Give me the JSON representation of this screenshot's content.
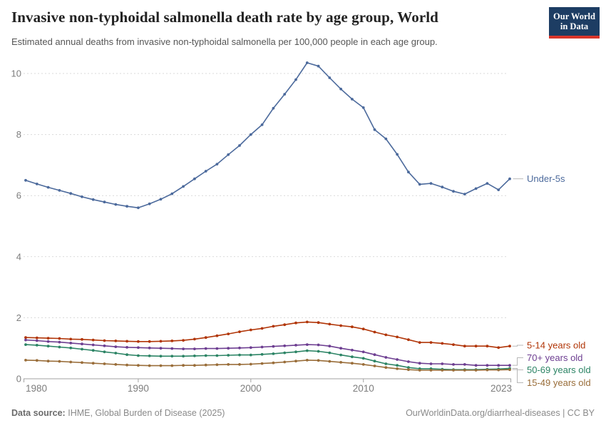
{
  "header": {
    "title": "Invasive non-typhoidal salmonella death rate by age group, World",
    "subtitle": "Estimated annual deaths from invasive non-typhoidal salmonella per 100,000 people in each age group."
  },
  "logo": {
    "line1": "Our World",
    "line2": "in Data",
    "bg_color": "#1D3D63",
    "accent_color": "#D8352A"
  },
  "chart_data": {
    "type": "line",
    "title": "Invasive non-typhoidal salmonella death rate by age group, World",
    "xlabel": "",
    "ylabel": "",
    "ylim": [
      0,
      10.4
    ],
    "yticks": [
      0,
      2,
      4,
      6,
      8,
      10
    ],
    "xticks": [
      1980,
      1990,
      2000,
      2010,
      2023
    ],
    "grid": "horizontal-dashed",
    "legend_position": "end-labels-right",
    "axis_color": "#a3a3a3",
    "grid_color": "#d9d9d9",
    "tick_label_color": "#7d7d7d",
    "connector_color": "#b8b8b8",
    "x": [
      1980,
      1981,
      1982,
      1983,
      1984,
      1985,
      1986,
      1987,
      1988,
      1989,
      1990,
      1991,
      1992,
      1993,
      1994,
      1995,
      1996,
      1997,
      1998,
      1999,
      2000,
      2001,
      2002,
      2003,
      2004,
      2005,
      2006,
      2007,
      2008,
      2009,
      2010,
      2011,
      2012,
      2013,
      2014,
      2015,
      2016,
      2017,
      2018,
      2019,
      2020,
      2021,
      2022,
      2023
    ],
    "series": [
      {
        "name": "Under-5s",
        "color": "#4C6A9C",
        "values": [
          6.5,
          6.38,
          6.27,
          6.17,
          6.07,
          5.96,
          5.87,
          5.79,
          5.71,
          5.65,
          5.6,
          5.73,
          5.88,
          6.06,
          6.3,
          6.55,
          6.8,
          7.03,
          7.34,
          7.64,
          8.0,
          8.32,
          8.86,
          9.32,
          9.8,
          10.35,
          10.24,
          9.86,
          9.49,
          9.16,
          8.88,
          8.16,
          7.86,
          7.35,
          6.77,
          6.37,
          6.4,
          6.28,
          6.14,
          6.05,
          6.23,
          6.4,
          6.19,
          6.55
        ]
      },
      {
        "name": "5-14 years old",
        "color": "#B13507",
        "values": [
          1.35,
          1.34,
          1.33,
          1.32,
          1.3,
          1.29,
          1.27,
          1.25,
          1.24,
          1.23,
          1.22,
          1.22,
          1.23,
          1.24,
          1.26,
          1.3,
          1.35,
          1.41,
          1.47,
          1.54,
          1.6,
          1.65,
          1.72,
          1.77,
          1.83,
          1.86,
          1.84,
          1.79,
          1.74,
          1.7,
          1.63,
          1.53,
          1.44,
          1.37,
          1.28,
          1.19,
          1.19,
          1.16,
          1.12,
          1.07,
          1.07,
          1.07,
          1.02,
          1.07
        ]
      },
      {
        "name": "70+ years old",
        "color": "#6D3E91",
        "values": [
          1.27,
          1.25,
          1.22,
          1.2,
          1.17,
          1.14,
          1.11,
          1.08,
          1.05,
          1.03,
          1.02,
          1.01,
          1.0,
          0.99,
          0.98,
          0.98,
          0.99,
          0.99,
          1.0,
          1.01,
          1.02,
          1.04,
          1.06,
          1.08,
          1.1,
          1.12,
          1.11,
          1.07,
          1.0,
          0.94,
          0.88,
          0.79,
          0.7,
          0.63,
          0.56,
          0.51,
          0.49,
          0.49,
          0.47,
          0.47,
          0.44,
          0.44,
          0.44,
          0.44
        ]
      },
      {
        "name": "50-69 years old",
        "color": "#2C8465",
        "values": [
          1.12,
          1.1,
          1.07,
          1.04,
          1.01,
          0.97,
          0.93,
          0.88,
          0.84,
          0.79,
          0.76,
          0.75,
          0.74,
          0.74,
          0.74,
          0.75,
          0.76,
          0.76,
          0.77,
          0.78,
          0.78,
          0.8,
          0.82,
          0.85,
          0.88,
          0.92,
          0.9,
          0.85,
          0.78,
          0.72,
          0.67,
          0.58,
          0.49,
          0.44,
          0.37,
          0.33,
          0.33,
          0.31,
          0.3,
          0.3,
          0.3,
          0.31,
          0.32,
          0.34
        ]
      },
      {
        "name": "15-49 years old",
        "color": "#996D39",
        "values": [
          0.61,
          0.6,
          0.58,
          0.57,
          0.55,
          0.53,
          0.51,
          0.49,
          0.47,
          0.45,
          0.44,
          0.43,
          0.43,
          0.43,
          0.44,
          0.44,
          0.45,
          0.46,
          0.47,
          0.47,
          0.48,
          0.5,
          0.52,
          0.55,
          0.58,
          0.61,
          0.6,
          0.57,
          0.54,
          0.51,
          0.47,
          0.42,
          0.37,
          0.33,
          0.3,
          0.28,
          0.28,
          0.28,
          0.28,
          0.28,
          0.28,
          0.29,
          0.29,
          0.3
        ]
      }
    ]
  },
  "footer": {
    "source_label": "Data source:",
    "source_text": "IHME, Global Burden of Disease (2025)",
    "link_text": "OurWorldinData.org/diarrheal-diseases | CC BY"
  }
}
